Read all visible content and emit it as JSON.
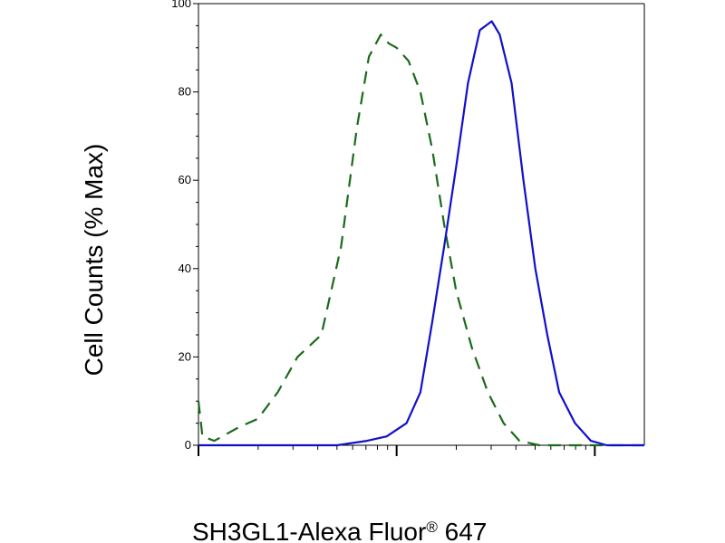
{
  "chart_data": {
    "type": "line",
    "xlabel": "SH3GL1-Alexa Fluor",
    "xlabel_superscript": "®",
    "xlabel_suffix": " 647",
    "ylabel": "Cell Counts (% Max)",
    "ylim": [
      0,
      100
    ],
    "y_ticks": [
      "0",
      "20",
      "40",
      "60",
      "80",
      "100"
    ],
    "x_scale": "log",
    "x_ticks_major": [
      0.0,
      1.0,
      2.0
    ],
    "grid": false,
    "legend": "none",
    "series": [
      {
        "style": "dashed",
        "color": "#1a6b1a",
        "points": [
          [
            0.0,
            10
          ],
          [
            0.02,
            2
          ],
          [
            0.08,
            1
          ],
          [
            0.2,
            4
          ],
          [
            0.3,
            6
          ],
          [
            0.4,
            12
          ],
          [
            0.5,
            20
          ],
          [
            0.62,
            25
          ],
          [
            0.72,
            45
          ],
          [
            0.8,
            72
          ],
          [
            0.86,
            88
          ],
          [
            0.92,
            93
          ],
          [
            0.96,
            91
          ],
          [
            1.0,
            90
          ],
          [
            1.06,
            87
          ],
          [
            1.12,
            80
          ],
          [
            1.18,
            67
          ],
          [
            1.24,
            50
          ],
          [
            1.3,
            35
          ],
          [
            1.38,
            22
          ],
          [
            1.46,
            12
          ],
          [
            1.54,
            5
          ],
          [
            1.62,
            1
          ],
          [
            1.72,
            0
          ],
          [
            2.0,
            0
          ],
          [
            2.25,
            0
          ]
        ]
      },
      {
        "style": "solid",
        "color": "#1010cc",
        "points": [
          [
            0.0,
            0
          ],
          [
            0.5,
            0
          ],
          [
            0.7,
            0
          ],
          [
            0.85,
            1
          ],
          [
            0.95,
            2
          ],
          [
            1.05,
            5
          ],
          [
            1.12,
            12
          ],
          [
            1.18,
            28
          ],
          [
            1.24,
            45
          ],
          [
            1.3,
            63
          ],
          [
            1.36,
            82
          ],
          [
            1.42,
            94
          ],
          [
            1.48,
            96
          ],
          [
            1.52,
            93
          ],
          [
            1.58,
            82
          ],
          [
            1.64,
            60
          ],
          [
            1.7,
            40
          ],
          [
            1.76,
            25
          ],
          [
            1.82,
            12
          ],
          [
            1.9,
            5
          ],
          [
            1.98,
            1
          ],
          [
            2.06,
            0
          ],
          [
            2.25,
            0
          ]
        ]
      }
    ]
  }
}
